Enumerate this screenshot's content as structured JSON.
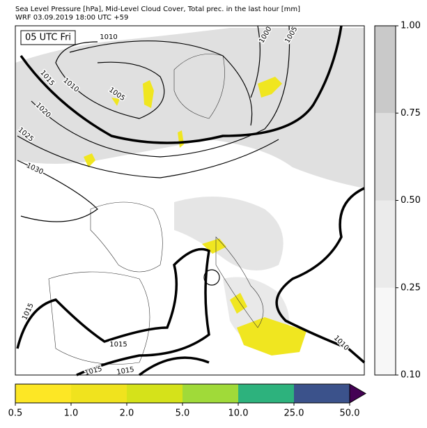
{
  "header": {
    "title": "Sea Level Pressure [hPa], Mid-Level Cloud Cover, Total prec. in the last hour [mm]",
    "subtitle": "WRF 03.09.2019 18:00 UTC +59"
  },
  "map": {
    "time_label": "05 UTC Fri",
    "isobar_labels": [
      1010,
      1015,
      1010,
      1005,
      1000,
      1005,
      1020,
      1025,
      1030,
      1015,
      1015,
      1015,
      1015,
      1010
    ]
  },
  "cloud_colorbar": {
    "colors": [
      "#f7f7f7",
      "#ebebeb",
      "#dedede",
      "#c9c9c9"
    ],
    "ticks": [
      {
        "value": 0.1,
        "label": "0.10"
      },
      {
        "value": 0.25,
        "label": "0.25"
      },
      {
        "value": 0.5,
        "label": "0.50"
      },
      {
        "value": 0.75,
        "label": "0.75"
      },
      {
        "value": 1,
        "label": "1.00"
      }
    ]
  },
  "precip_colorbar": {
    "colors": [
      "#fde725",
      "#f0e31e",
      "#d5e21a",
      "#a0da39",
      "#2db27d",
      "#3b528b"
    ],
    "extend_color": "#440154",
    "ticks": [
      0.5,
      {
        "value": 1,
        "label": "1.0"
      },
      {
        "value": 2,
        "label": "2.0"
      },
      {
        "value": 5,
        "label": "5.0"
      },
      {
        "value": 10,
        "label": "10.0"
      },
      {
        "value": 25,
        "label": "25.0"
      },
      {
        "value": 50,
        "label": "50.0"
      }
    ]
  }
}
